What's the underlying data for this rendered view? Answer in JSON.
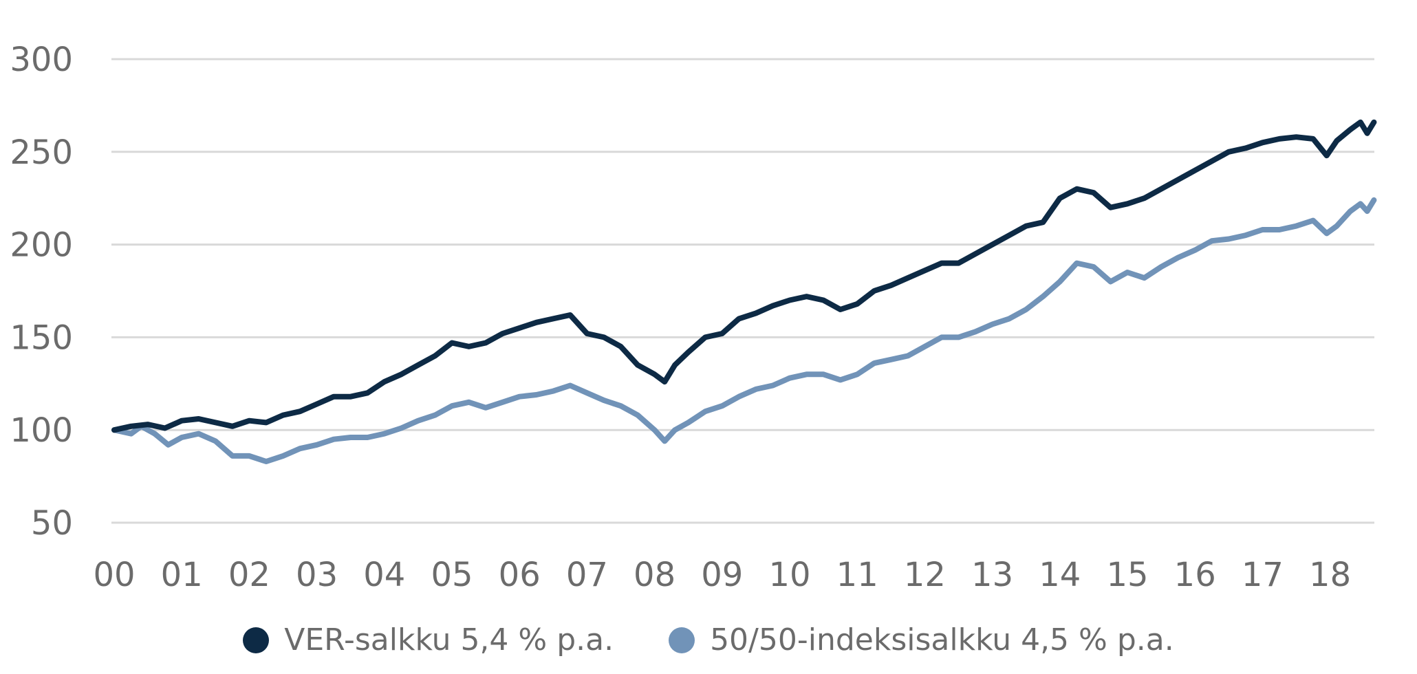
{
  "chart_data": {
    "type": "line",
    "title": "",
    "xlabel": "",
    "ylabel": "",
    "ylim": [
      50,
      300
    ],
    "yticks": [
      50,
      100,
      150,
      200,
      250,
      300
    ],
    "x_tick_labels": [
      "00",
      "01",
      "02",
      "03",
      "04",
      "05",
      "06",
      "07",
      "08",
      "09",
      "10",
      "11",
      "12",
      "13",
      "14",
      "15",
      "16",
      "17",
      "18"
    ],
    "grid": true,
    "legend_position": "bottom",
    "series": [
      {
        "name": "VER-salkku 5,4 % p.a.",
        "color": "#0d2a45",
        "points": [
          [
            0.0,
            100
          ],
          [
            0.25,
            102
          ],
          [
            0.5,
            103
          ],
          [
            0.75,
            101
          ],
          [
            1.0,
            105
          ],
          [
            1.25,
            106
          ],
          [
            1.5,
            104
          ],
          [
            1.75,
            102
          ],
          [
            2.0,
            105
          ],
          [
            2.25,
            104
          ],
          [
            2.5,
            108
          ],
          [
            2.75,
            110
          ],
          [
            3.0,
            114
          ],
          [
            3.25,
            118
          ],
          [
            3.5,
            118
          ],
          [
            3.75,
            120
          ],
          [
            4.0,
            126
          ],
          [
            4.25,
            130
          ],
          [
            4.5,
            135
          ],
          [
            4.75,
            140
          ],
          [
            5.0,
            147
          ],
          [
            5.25,
            145
          ],
          [
            5.5,
            147
          ],
          [
            5.75,
            152
          ],
          [
            6.0,
            155
          ],
          [
            6.25,
            158
          ],
          [
            6.5,
            160
          ],
          [
            6.75,
            162
          ],
          [
            7.0,
            152
          ],
          [
            7.25,
            150
          ],
          [
            7.5,
            145
          ],
          [
            7.75,
            135
          ],
          [
            8.0,
            130
          ],
          [
            8.15,
            126
          ],
          [
            8.3,
            135
          ],
          [
            8.5,
            142
          ],
          [
            8.75,
            150
          ],
          [
            9.0,
            152
          ],
          [
            9.25,
            160
          ],
          [
            9.5,
            163
          ],
          [
            9.75,
            167
          ],
          [
            10.0,
            170
          ],
          [
            10.25,
            172
          ],
          [
            10.5,
            170
          ],
          [
            10.75,
            165
          ],
          [
            11.0,
            168
          ],
          [
            11.25,
            175
          ],
          [
            11.5,
            178
          ],
          [
            11.75,
            182
          ],
          [
            12.0,
            186
          ],
          [
            12.25,
            190
          ],
          [
            12.5,
            190
          ],
          [
            12.75,
            195
          ],
          [
            13.0,
            200
          ],
          [
            13.25,
            205
          ],
          [
            13.5,
            210
          ],
          [
            13.75,
            212
          ],
          [
            14.0,
            225
          ],
          [
            14.25,
            230
          ],
          [
            14.5,
            228
          ],
          [
            14.75,
            220
          ],
          [
            15.0,
            222
          ],
          [
            15.25,
            225
          ],
          [
            15.5,
            230
          ],
          [
            15.75,
            235
          ],
          [
            16.0,
            240
          ],
          [
            16.25,
            245
          ],
          [
            16.5,
            250
          ],
          [
            16.75,
            252
          ],
          [
            17.0,
            255
          ],
          [
            17.25,
            257
          ],
          [
            17.5,
            258
          ],
          [
            17.75,
            257
          ],
          [
            17.95,
            248
          ],
          [
            18.1,
            256
          ],
          [
            18.3,
            262
          ],
          [
            18.45,
            266
          ],
          [
            18.55,
            260
          ],
          [
            18.65,
            266
          ]
        ]
      },
      {
        "name": "50/50-indeksisalkku 4,5 % p.a.",
        "color": "#7193b8",
        "points": [
          [
            0.0,
            100
          ],
          [
            0.25,
            98
          ],
          [
            0.4,
            102
          ],
          [
            0.6,
            98
          ],
          [
            0.8,
            92
          ],
          [
            1.0,
            96
          ],
          [
            1.25,
            98
          ],
          [
            1.5,
            94
          ],
          [
            1.75,
            86
          ],
          [
            2.0,
            86
          ],
          [
            2.25,
            83
          ],
          [
            2.5,
            86
          ],
          [
            2.75,
            90
          ],
          [
            3.0,
            92
          ],
          [
            3.25,
            95
          ],
          [
            3.5,
            96
          ],
          [
            3.75,
            96
          ],
          [
            4.0,
            98
          ],
          [
            4.25,
            101
          ],
          [
            4.5,
            105
          ],
          [
            4.75,
            108
          ],
          [
            5.0,
            113
          ],
          [
            5.25,
            115
          ],
          [
            5.5,
            112
          ],
          [
            5.75,
            115
          ],
          [
            6.0,
            118
          ],
          [
            6.25,
            119
          ],
          [
            6.5,
            121
          ],
          [
            6.75,
            124
          ],
          [
            7.0,
            120
          ],
          [
            7.25,
            116
          ],
          [
            7.5,
            113
          ],
          [
            7.75,
            108
          ],
          [
            8.0,
            100
          ],
          [
            8.15,
            94
          ],
          [
            8.3,
            100
          ],
          [
            8.5,
            104
          ],
          [
            8.75,
            110
          ],
          [
            9.0,
            113
          ],
          [
            9.25,
            118
          ],
          [
            9.5,
            122
          ],
          [
            9.75,
            124
          ],
          [
            10.0,
            128
          ],
          [
            10.25,
            130
          ],
          [
            10.5,
            130
          ],
          [
            10.75,
            127
          ],
          [
            11.0,
            130
          ],
          [
            11.25,
            136
          ],
          [
            11.5,
            138
          ],
          [
            11.75,
            140
          ],
          [
            12.0,
            145
          ],
          [
            12.25,
            150
          ],
          [
            12.5,
            150
          ],
          [
            12.75,
            153
          ],
          [
            13.0,
            157
          ],
          [
            13.25,
            160
          ],
          [
            13.5,
            165
          ],
          [
            13.75,
            172
          ],
          [
            14.0,
            180
          ],
          [
            14.25,
            190
          ],
          [
            14.5,
            188
          ],
          [
            14.75,
            180
          ],
          [
            15.0,
            185
          ],
          [
            15.25,
            182
          ],
          [
            15.5,
            188
          ],
          [
            15.75,
            193
          ],
          [
            16.0,
            197
          ],
          [
            16.25,
            202
          ],
          [
            16.5,
            203
          ],
          [
            16.75,
            205
          ],
          [
            17.0,
            208
          ],
          [
            17.25,
            208
          ],
          [
            17.5,
            210
          ],
          [
            17.75,
            213
          ],
          [
            17.95,
            206
          ],
          [
            18.1,
            210
          ],
          [
            18.3,
            218
          ],
          [
            18.45,
            222
          ],
          [
            18.55,
            218
          ],
          [
            18.65,
            224
          ]
        ]
      }
    ]
  },
  "legend": {
    "items": [
      {
        "label": "VER-salkku 5,4 % p.a.",
        "color": "#0d2a45"
      },
      {
        "label": "50/50-indeksisalkku 4,5 % p.a.",
        "color": "#7193b8"
      }
    ]
  }
}
